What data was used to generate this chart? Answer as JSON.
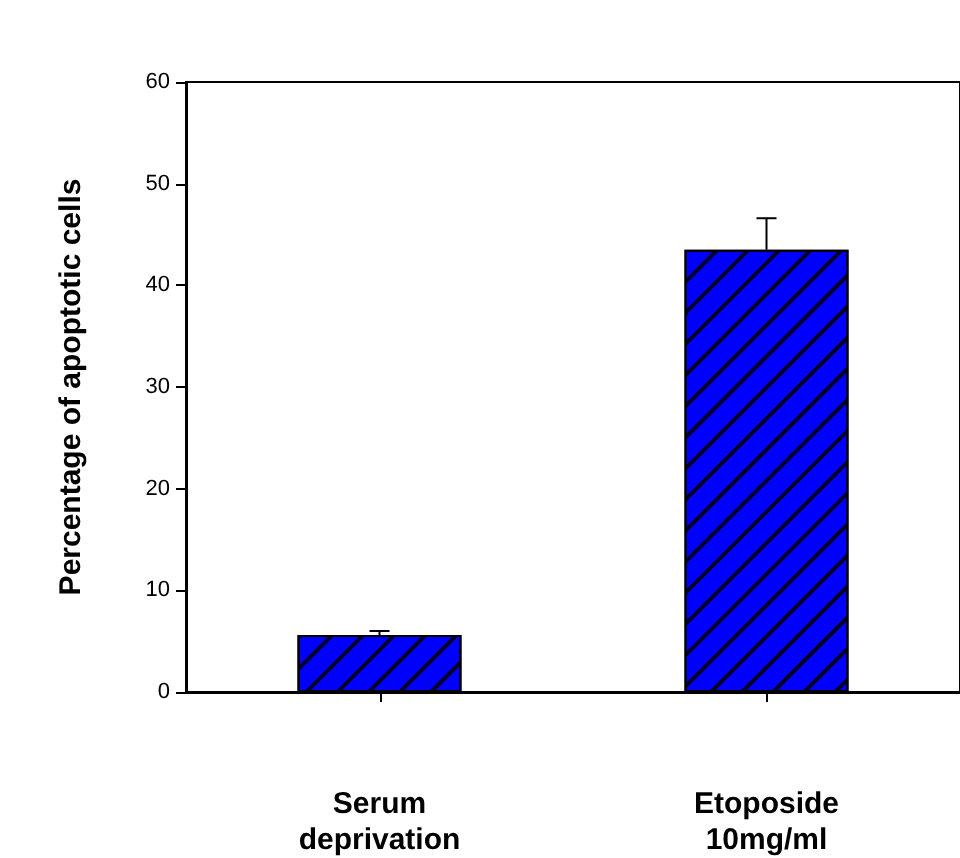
{
  "chart_data": {
    "type": "bar",
    "ylabel": "Percentage of apoptotic cells",
    "categories": [
      "Serum\ndeprivation",
      "Etoposide\n10mg/ml"
    ],
    "values": [
      5.6,
      43.5
    ],
    "errors": [
      0.4,
      3.1
    ],
    "color": "#0000ff",
    "ylim": [
      0,
      60
    ],
    "yticks": [
      0,
      10,
      20,
      30,
      40,
      50,
      60
    ],
    "grid": false
  }
}
